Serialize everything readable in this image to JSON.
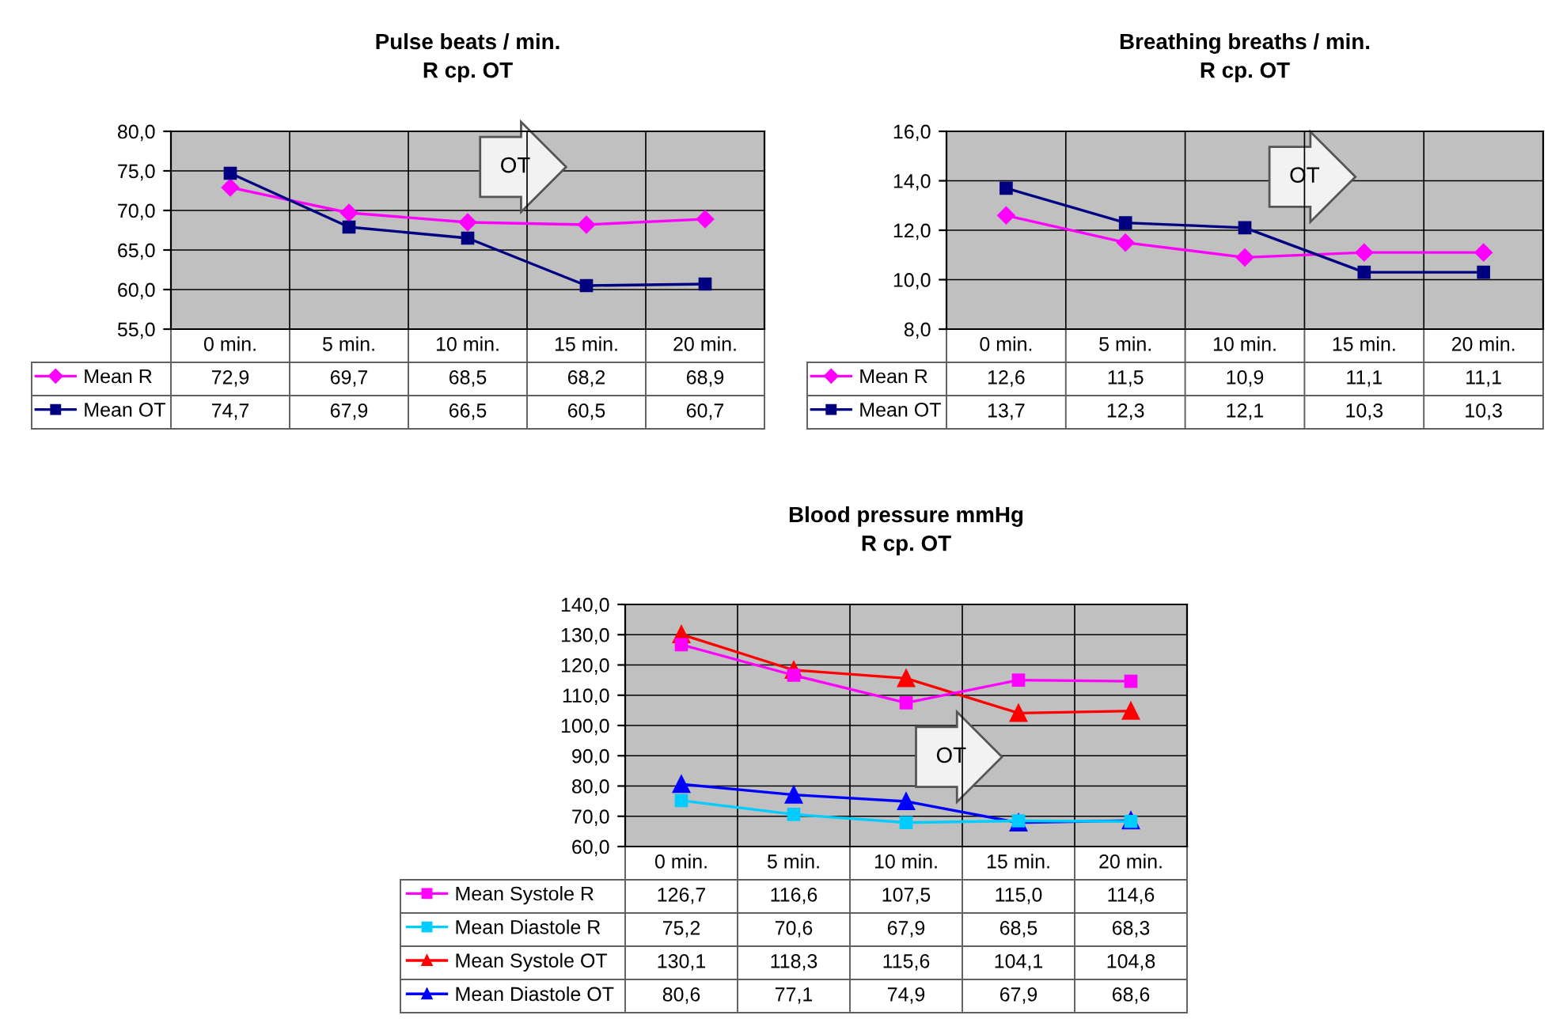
{
  "chart_data": [
    {
      "type": "line",
      "title": "Pulse beats / min.",
      "subtitle": "R cp. OT",
      "categories": [
        "0 min.",
        "5 min.",
        "10 min.",
        "15 min.",
        "20 min."
      ],
      "ylim": [
        55,
        80
      ],
      "yticks": [
        {
          "value": 55,
          "label": "55,0"
        },
        {
          "value": 60,
          "label": "60,0"
        },
        {
          "value": 65,
          "label": "65,0"
        },
        {
          "value": 70,
          "label": "70,0"
        },
        {
          "value": 75,
          "label": "75,0"
        },
        {
          "value": 80,
          "label": "80,0"
        }
      ],
      "grid": true,
      "legend": "bottom",
      "annotations": [
        "OT"
      ],
      "series": [
        {
          "name": "Mean R",
          "color": "#ff00ff",
          "marker": "diamond",
          "values": [
            72.9,
            69.7,
            68.5,
            68.2,
            68.9
          ],
          "value_labels": [
            "72,9",
            "69,7",
            "68,5",
            "68,2",
            "68,9"
          ]
        },
        {
          "name": "Mean OT",
          "color": "#000080",
          "marker": "square",
          "values": [
            74.7,
            67.9,
            66.5,
            60.5,
            60.7
          ],
          "value_labels": [
            "74,7",
            "67,9",
            "66,5",
            "60,5",
            "60,7"
          ]
        }
      ]
    },
    {
      "type": "line",
      "title": "Breathing breaths / min.",
      "subtitle": "R cp. OT",
      "categories": [
        "0 min.",
        "5 min.",
        "10 min.",
        "15 min.",
        "20 min."
      ],
      "ylim": [
        8,
        16
      ],
      "yticks": [
        {
          "value": 8,
          "label": "8,0"
        },
        {
          "value": 10,
          "label": "10,0"
        },
        {
          "value": 12,
          "label": "12,0"
        },
        {
          "value": 14,
          "label": "14,0"
        },
        {
          "value": 16,
          "label": "16,0"
        }
      ],
      "grid": true,
      "legend": "bottom",
      "annotations": [
        "OT"
      ],
      "series": [
        {
          "name": "Mean R",
          "color": "#ff00ff",
          "marker": "diamond",
          "values": [
            12.6,
            11.5,
            10.9,
            11.1,
            11.1
          ],
          "value_labels": [
            "12,6",
            "11,5",
            "10,9",
            "11,1",
            "11,1"
          ]
        },
        {
          "name": "Mean OT",
          "color": "#000080",
          "marker": "square",
          "values": [
            13.7,
            12.3,
            12.1,
            10.3,
            10.3
          ],
          "value_labels": [
            "13,7",
            "12,3",
            "12,1",
            "10,3",
            "10,3"
          ]
        }
      ]
    },
    {
      "type": "line",
      "title": "Blood pressure mmHg",
      "subtitle": "R cp. OT",
      "categories": [
        "0 min.",
        "5 min.",
        "10 min.",
        "15 min.",
        "20 min."
      ],
      "ylim": [
        60,
        140
      ],
      "yticks": [
        {
          "value": 60,
          "label": "60,0"
        },
        {
          "value": 70,
          "label": "70,0"
        },
        {
          "value": 80,
          "label": "80,0"
        },
        {
          "value": 90,
          "label": "90,0"
        },
        {
          "value": 100,
          "label": "100,0"
        },
        {
          "value": 110,
          "label": "110,0"
        },
        {
          "value": 120,
          "label": "120,0"
        },
        {
          "value": 130,
          "label": "130,0"
        },
        {
          "value": 140,
          "label": "140,0"
        }
      ],
      "grid": true,
      "legend": "bottom",
      "annotations": [
        "OT"
      ],
      "series": [
        {
          "name": "Mean Systole R",
          "color": "#ff00ff",
          "marker": "square",
          "values": [
            126.7,
            116.6,
            107.5,
            115.0,
            114.6
          ],
          "value_labels": [
            "126,7",
            "116,6",
            "107,5",
            "115,0",
            "114,6"
          ]
        },
        {
          "name": "Mean Diastole R",
          "color": "#00ccff",
          "marker": "square",
          "values": [
            75.2,
            70.6,
            67.9,
            68.5,
            68.3
          ],
          "value_labels": [
            "75,2",
            "70,6",
            "67,9",
            "68,5",
            "68,3"
          ]
        },
        {
          "name": "Mean Systole OT",
          "color": "#ff0000",
          "marker": "triangle",
          "values": [
            130.1,
            118.3,
            115.6,
            104.1,
            104.8
          ],
          "value_labels": [
            "130,1",
            "118,3",
            "115,6",
            "104,1",
            "104,8"
          ]
        },
        {
          "name": "Mean Diastole OT",
          "color": "#0000ff",
          "marker": "triangle",
          "values": [
            80.6,
            77.1,
            74.9,
            67.9,
            68.6
          ],
          "value_labels": [
            "80,6",
            "77,1",
            "74,9",
            "67,9",
            "68,6"
          ]
        }
      ]
    }
  ]
}
